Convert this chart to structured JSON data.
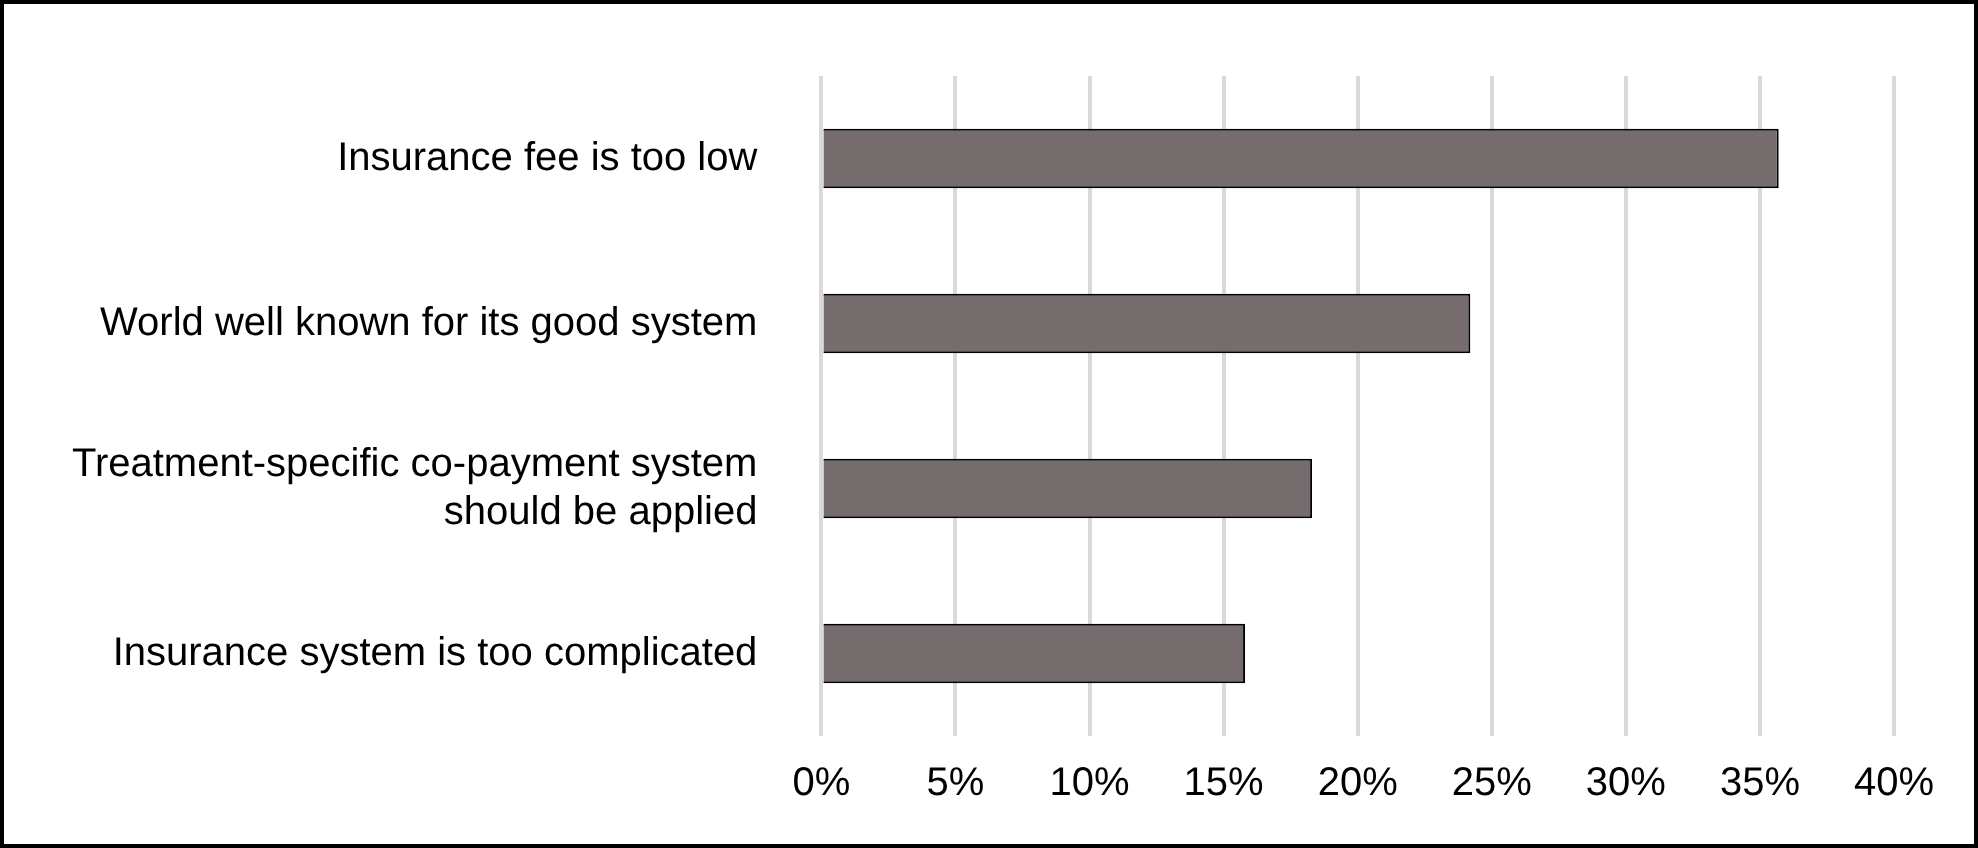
{
  "chart_data": {
    "type": "bar",
    "orientation": "horizontal",
    "categories": [
      "Insurance fee is too low",
      "World well known for its good system",
      "Treatment-specific co-payment system should be applied",
      "Insurance system is too complicated"
    ],
    "values": [
      35.7,
      24.2,
      18.3,
      15.8
    ],
    "color": "#756d6d",
    "xlim": [
      0,
      40
    ],
    "xticks": [
      {
        "value": 0,
        "label": "0%"
      },
      {
        "value": 5,
        "label": "5%"
      },
      {
        "value": 10,
        "label": "10%"
      },
      {
        "value": 15,
        "label": "15%"
      },
      {
        "value": 20,
        "label": "20%"
      },
      {
        "value": 25,
        "label": "25%"
      },
      {
        "value": 30,
        "label": "30%"
      },
      {
        "value": 35,
        "label": "35%"
      },
      {
        "value": 40,
        "label": "40%"
      }
    ],
    "grid": "x",
    "legend": false
  }
}
